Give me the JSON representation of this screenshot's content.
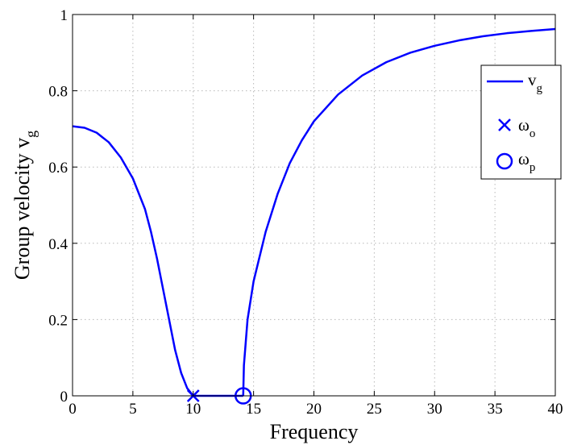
{
  "chart_data": {
    "type": "line",
    "title": "",
    "xlabel": "Frequency",
    "ylabel": {
      "main": "Group velocity v",
      "sub": "g"
    },
    "xlim": [
      0,
      40
    ],
    "ylim": [
      0,
      1
    ],
    "xticks": [
      0,
      5,
      10,
      15,
      20,
      25,
      30,
      35,
      40
    ],
    "yticks": [
      0,
      0.2,
      0.4,
      0.6,
      0.8,
      1
    ],
    "ytick_labels": [
      "0",
      "0.2",
      "0.4",
      "0.6",
      "0.8",
      "1"
    ],
    "grid": true,
    "legend_position": "right",
    "colors": {
      "series": "#0000ff"
    },
    "series": [
      {
        "name": "v_g",
        "label": {
          "main": "v",
          "sub": "g"
        },
        "segments": [
          [
            [
              0,
              0.707
            ],
            [
              1,
              0.703
            ],
            [
              2,
              0.69
            ],
            [
              3,
              0.665
            ],
            [
              4,
              0.625
            ],
            [
              5,
              0.57
            ],
            [
              6,
              0.49
            ],
            [
              6.5,
              0.43
            ],
            [
              7,
              0.36
            ],
            [
              7.5,
              0.28
            ],
            [
              8,
              0.2
            ],
            [
              8.5,
              0.12
            ],
            [
              9,
              0.06
            ],
            [
              9.5,
              0.02
            ],
            [
              10,
              0
            ]
          ],
          [
            [
              10,
              0
            ],
            [
              14.14,
              0
            ]
          ],
          [
            [
              14.14,
              0
            ],
            [
              14.2,
              0.08
            ],
            [
              14.5,
              0.2
            ],
            [
              15,
              0.3
            ],
            [
              16,
              0.43
            ],
            [
              17,
              0.53
            ],
            [
              18,
              0.61
            ],
            [
              19,
              0.67
            ],
            [
              20,
              0.72
            ],
            [
              22,
              0.79
            ],
            [
              24,
              0.84
            ],
            [
              26,
              0.875
            ],
            [
              28,
              0.9
            ],
            [
              30,
              0.918
            ],
            [
              32,
              0.932
            ],
            [
              34,
              0.943
            ],
            [
              36,
              0.951
            ],
            [
              38,
              0.957
            ],
            [
              40,
              0.962
            ]
          ]
        ]
      },
      {
        "name": "omega_o",
        "label": {
          "main": "ω",
          "sub": "o"
        },
        "marker": "x",
        "points": [
          [
            10,
            0
          ]
        ]
      },
      {
        "name": "omega_p",
        "label": {
          "main": "ω",
          "sub": "p"
        },
        "marker": "o",
        "points": [
          [
            14.14,
            0
          ]
        ]
      }
    ]
  }
}
